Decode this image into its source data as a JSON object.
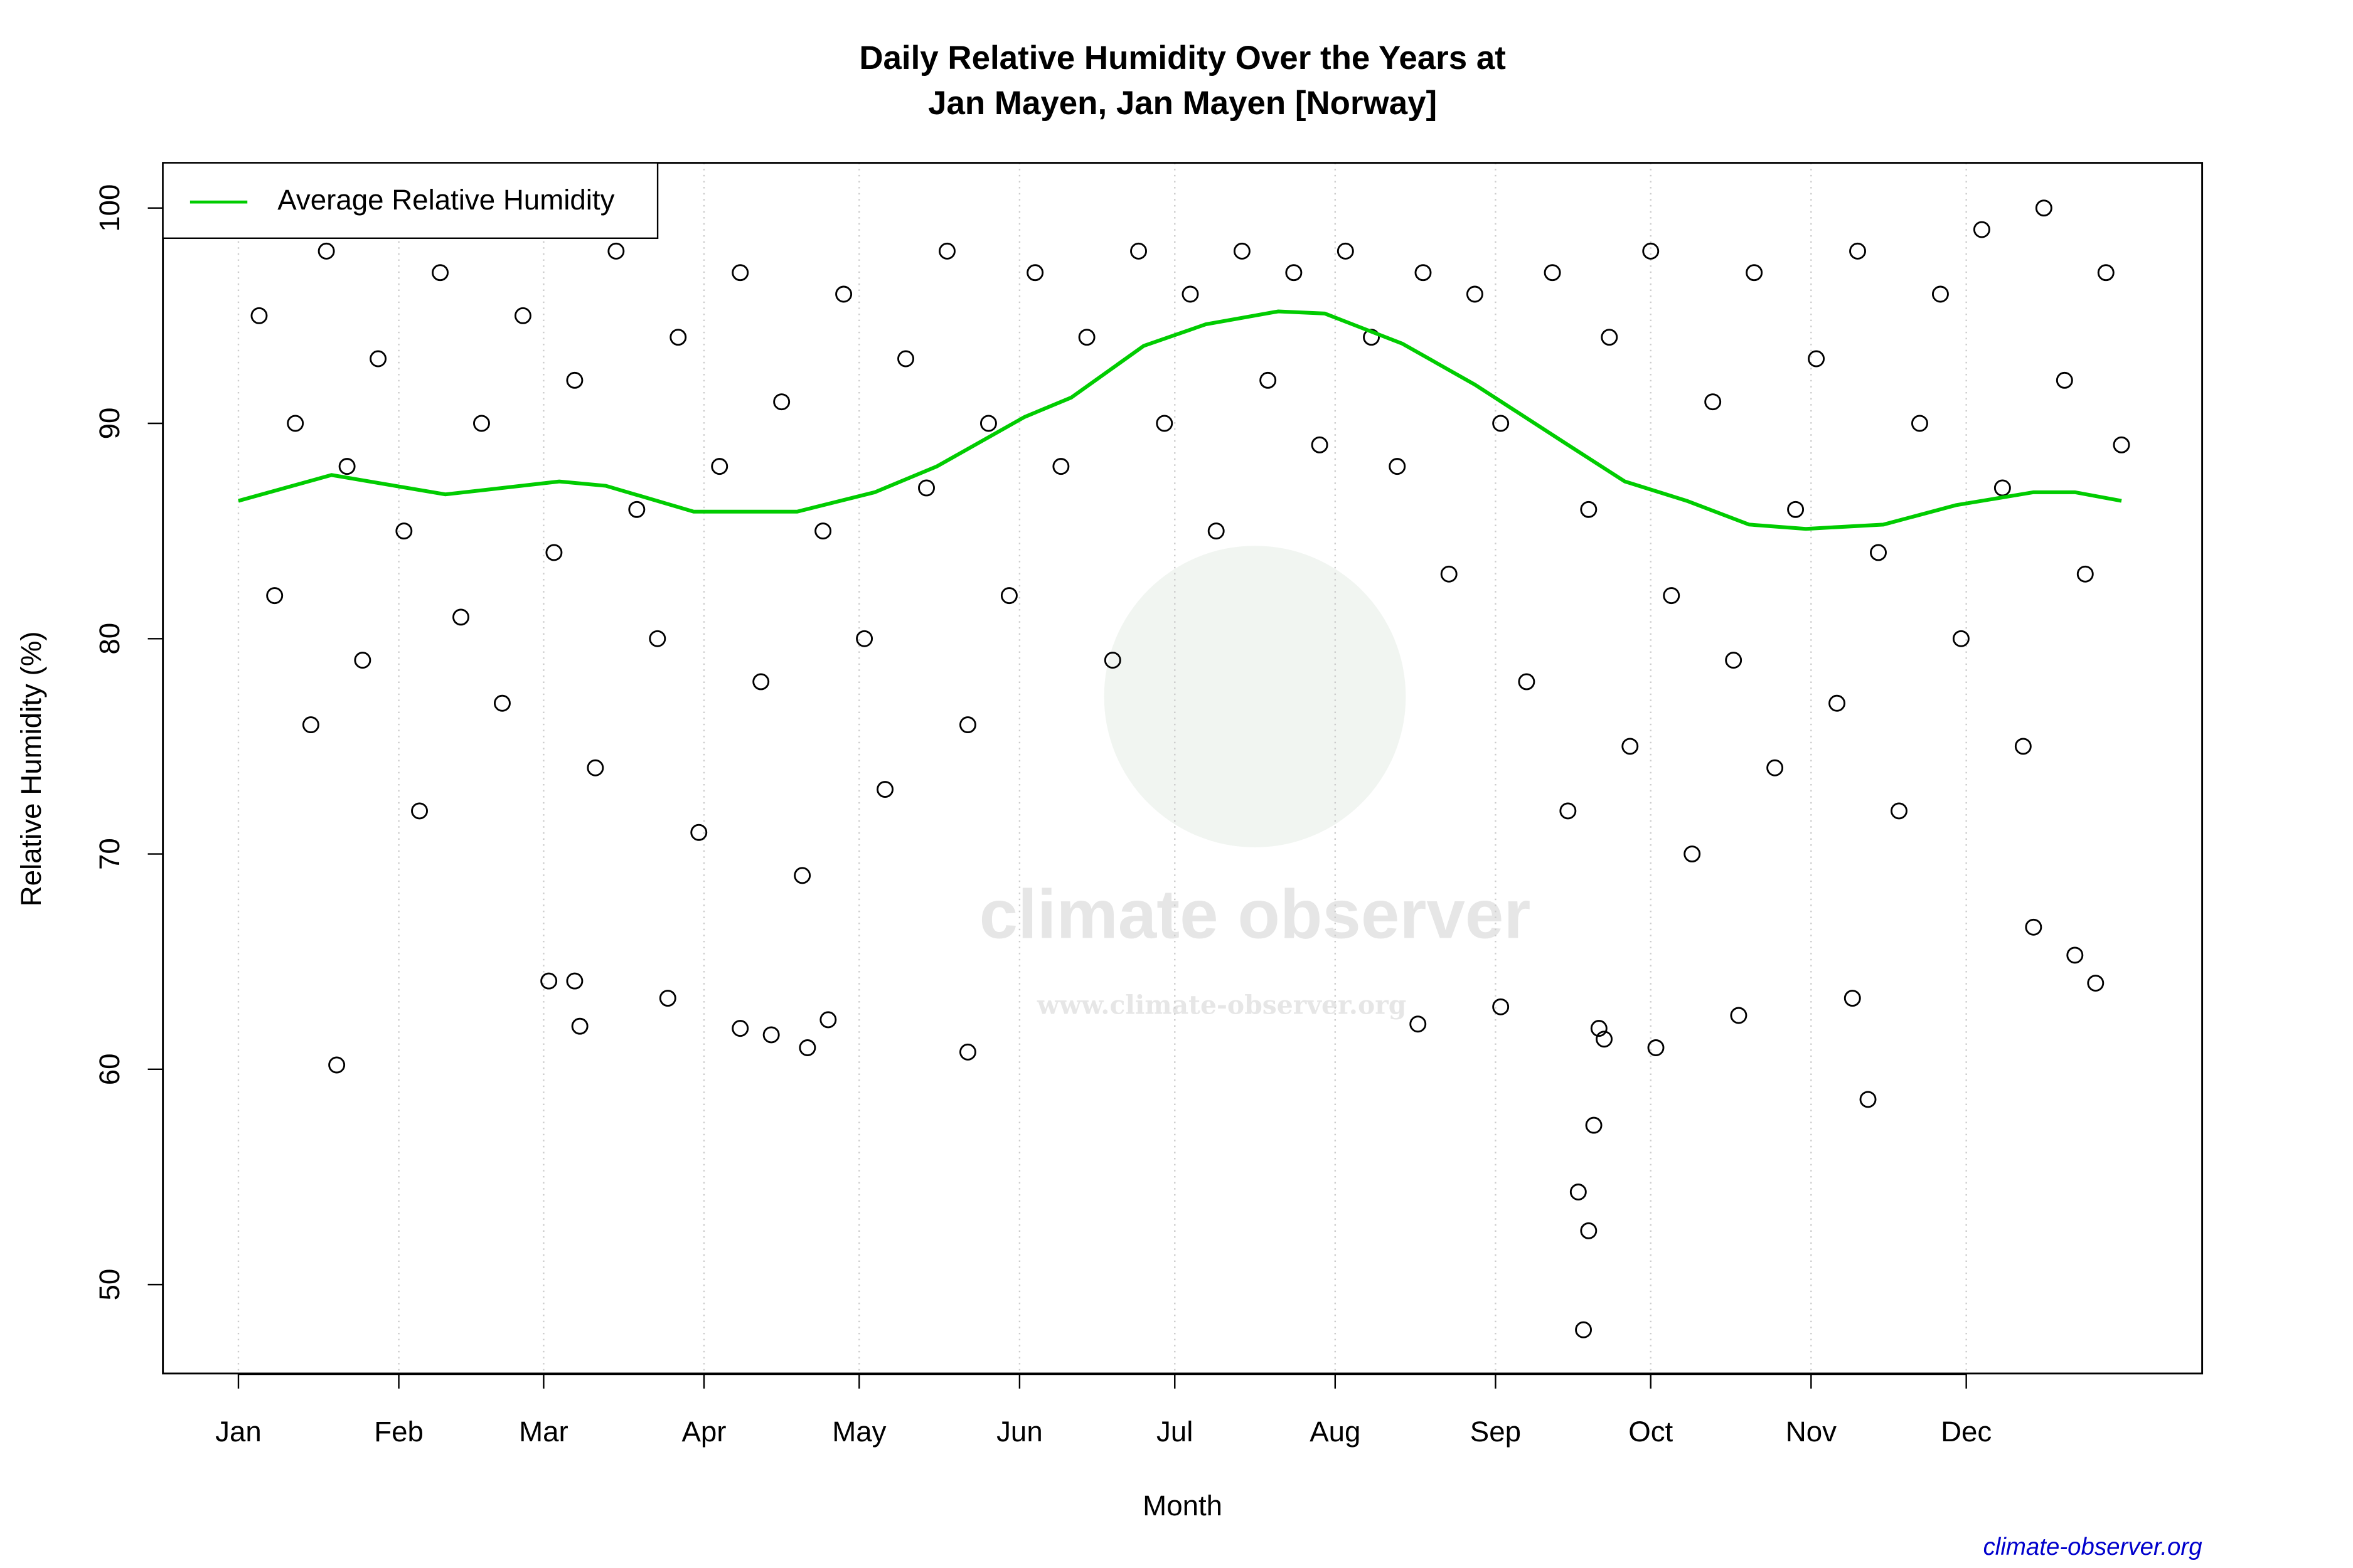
{
  "chart_data": {
    "type": "scatter",
    "title": [
      "Daily Relative Humidity Over the Years at",
      "Jan Mayen, Jan Mayen [Norway]"
    ],
    "xlabel": "Month",
    "ylabel": "Relative Humidity  (%)",
    "xlim": [
      -13.6,
      380.6
    ],
    "ylim": [
      45.87,
      102.1
    ],
    "xticks": [
      {
        "value": 1,
        "label": "Jan"
      },
      {
        "value": 32,
        "label": "Feb"
      },
      {
        "value": 60,
        "label": "Mar"
      },
      {
        "value": 91,
        "label": "Apr"
      },
      {
        "value": 121,
        "label": "May"
      },
      {
        "value": 152,
        "label": "Jun"
      },
      {
        "value": 182,
        "label": "Jul"
      },
      {
        "value": 213,
        "label": "Aug"
      },
      {
        "value": 244,
        "label": "Sep"
      },
      {
        "value": 274,
        "label": "Oct"
      },
      {
        "value": 305,
        "label": "Nov"
      },
      {
        "value": 335,
        "label": "Dec"
      }
    ],
    "yticks": [
      50,
      60,
      70,
      80,
      90,
      100
    ],
    "grid": "x",
    "legend": "top-left",
    "series": [
      {
        "type": "scatter",
        "color": "#000000",
        "x": [
          5,
          8,
          12,
          15,
          18,
          22,
          25,
          28,
          33,
          36,
          40,
          44,
          48,
          52,
          56,
          62,
          66,
          70,
          74,
          78,
          82,
          86,
          90,
          94,
          98,
          102,
          106,
          110,
          114,
          118,
          122,
          126,
          130,
          134,
          138,
          142,
          146,
          150,
          155,
          160,
          165,
          170,
          175,
          180,
          185,
          190,
          195,
          200,
          205,
          210,
          215,
          220,
          225,
          230,
          235,
          240,
          245,
          250,
          255,
          258,
          262,
          266,
          270,
          274,
          278,
          282,
          286,
          290,
          294,
          298,
          302,
          306,
          310,
          314,
          318,
          322,
          326,
          330,
          334,
          338,
          342,
          346,
          350,
          354,
          358,
          362,
          365,
          20,
          261,
          260,
          262,
          263,
          316,
          264,
          265,
          111,
          142,
          275,
          245,
          229,
          67,
          61,
          66,
          84,
          98,
          104,
          115,
          313,
          291,
          360,
          356,
          348
        ],
        "values": [
          95,
          82,
          90,
          76,
          98,
          88,
          79,
          93,
          85,
          72,
          97,
          81,
          90,
          77,
          95,
          84,
          92,
          74,
          98,
          86,
          80,
          94,
          71,
          88,
          97,
          78,
          91,
          69,
          85,
          96,
          80,
          73,
          93,
          87,
          98,
          76,
          90,
          82,
          97,
          88,
          94,
          79,
          98,
          90,
          96,
          85,
          98,
          92,
          97,
          89,
          98,
          94,
          88,
          97,
          83,
          96,
          90,
          78,
          97,
          72,
          86,
          94,
          75,
          98,
          82,
          70,
          91,
          79,
          97,
          74,
          86,
          93,
          77,
          98,
          84,
          72,
          90,
          96,
          80,
          99,
          87,
          75,
          100,
          92,
          83,
          97,
          89,
          60.2,
          47.9,
          54.3,
          52.5,
          57.4,
          58.6,
          61.9,
          61.4,
          61,
          60.8,
          61,
          62.9,
          62.1,
          62,
          64.1,
          64.1,
          63.3,
          61.9,
          61.6,
          62.3,
          63.3,
          62.5,
          64,
          65.3,
          66.6
        ]
      },
      {
        "type": "line",
        "name": "Average Relative Humidity",
        "color": "#00cc00",
        "x": [
          1,
          19,
          41,
          63,
          72,
          89,
          109,
          124,
          136,
          153,
          162,
          176,
          188,
          202,
          211,
          226,
          240,
          258,
          269,
          281,
          293,
          304,
          319,
          333,
          348,
          356,
          365
        ],
        "values": [
          86.4,
          87.6,
          86.7,
          87.3,
          87.1,
          85.9,
          85.9,
          86.8,
          88,
          90.3,
          91.2,
          93.6,
          94.6,
          95.2,
          95.1,
          93.7,
          91.8,
          89,
          87.3,
          86.4,
          85.3,
          85.1,
          85.3,
          86.2,
          86.8,
          86.8,
          86.4
        ]
      }
    ],
    "watermark": [
      "climate observer",
      "www.climate-observer.org"
    ],
    "source": "climate-observer.org"
  }
}
